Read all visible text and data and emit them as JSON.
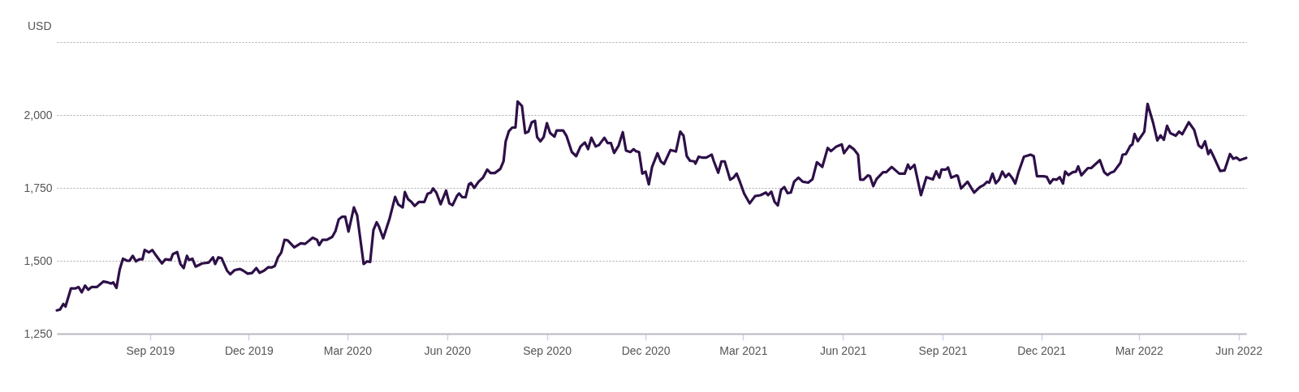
{
  "chart_data": {
    "type": "line",
    "ylabel": "USD",
    "grid": "y",
    "xlim": [
      "2019-06-07",
      "2022-06-08"
    ],
    "xticks": [
      {
        "value": "2019-09-01",
        "label": "Sep 2019"
      },
      {
        "value": "2019-12-01",
        "label": "Dec 2019"
      },
      {
        "value": "2020-03-01",
        "label": "Mar 2020"
      },
      {
        "value": "2020-06-01",
        "label": "Jun 2020"
      },
      {
        "value": "2020-09-01",
        "label": "Sep 2020"
      },
      {
        "value": "2020-12-01",
        "label": "Dec 2020"
      },
      {
        "value": "2021-03-01",
        "label": "Mar 2021"
      },
      {
        "value": "2021-06-01",
        "label": "Jun 2021"
      },
      {
        "value": "2021-09-01",
        "label": "Sep 2021"
      },
      {
        "value": "2021-12-01",
        "label": "Dec 2021"
      },
      {
        "value": "2022-03-01",
        "label": "Mar 2022"
      },
      {
        "value": "2022-06-01",
        "label": "Jun 2022"
      }
    ],
    "ylim": [
      1250,
      2250
    ],
    "yticks": [
      {
        "value": 1250,
        "label": "1,250"
      },
      {
        "value": 1500,
        "label": "1,500"
      },
      {
        "value": 1750,
        "label": "1,750"
      },
      {
        "value": 2000,
        "label": "2,000"
      },
      {
        "value": 2250,
        "label": null
      }
    ],
    "series": [
      {
        "color": "#2e1048",
        "x": [
          "2019-06-07",
          "2019-06-10",
          "2019-06-13",
          "2019-06-15",
          "2019-06-20",
          "2019-06-24",
          "2019-06-27",
          "2019-06-30",
          "2019-07-03",
          "2019-07-06",
          "2019-07-09",
          "2019-07-14",
          "2019-07-20",
          "2019-07-24",
          "2019-07-27",
          "2019-07-29",
          "2019-08-01",
          "2019-08-04",
          "2019-08-07",
          "2019-08-11",
          "2019-08-13",
          "2019-08-16",
          "2019-08-19",
          "2019-08-22",
          "2019-08-25",
          "2019-08-27",
          "2019-08-31",
          "2019-09-03",
          "2019-09-06",
          "2019-09-12",
          "2019-09-15",
          "2019-09-20",
          "2019-09-22",
          "2019-09-26",
          "2019-09-29",
          "2019-10-02",
          "2019-10-05",
          "2019-10-07",
          "2019-10-10",
          "2019-10-13",
          "2019-10-19",
          "2019-10-25",
          "2019-10-29",
          "2019-10-31",
          "2019-11-03",
          "2019-11-06",
          "2019-11-11",
          "2019-11-14",
          "2019-11-18",
          "2019-11-23",
          "2019-11-26",
          "2019-11-30",
          "2019-12-04",
          "2019-12-08",
          "2019-12-11",
          "2019-12-15",
          "2019-12-19",
          "2019-12-22",
          "2019-12-25",
          "2019-12-28",
          "2019-12-31",
          "2020-01-03",
          "2020-01-06",
          "2020-01-12",
          "2020-01-18",
          "2020-01-22",
          "2020-01-29",
          "2020-02-02",
          "2020-02-04",
          "2020-02-07",
          "2020-02-11",
          "2020-02-16",
          "2020-02-19",
          "2020-02-22",
          "2020-02-25",
          "2020-02-28",
          "2020-03-02",
          "2020-03-07",
          "2020-03-10",
          "2020-03-16",
          "2020-03-19",
          "2020-03-22",
          "2020-03-25",
          "2020-03-28",
          "2020-03-30",
          "2020-04-03",
          "2020-04-09",
          "2020-04-14",
          "2020-04-17",
          "2020-04-21",
          "2020-04-23",
          "2020-04-26",
          "2020-04-29",
          "2020-05-02",
          "2020-05-06",
          "2020-05-11",
          "2020-05-14",
          "2020-05-17",
          "2020-05-19",
          "2020-05-22",
          "2020-05-26",
          "2020-05-31",
          "2020-06-03",
          "2020-06-06",
          "2020-06-10",
          "2020-06-12",
          "2020-06-15",
          "2020-06-18",
          "2020-06-21",
          "2020-06-23",
          "2020-06-26",
          "2020-06-30",
          "2020-07-04",
          "2020-07-08",
          "2020-07-11",
          "2020-07-15",
          "2020-07-20",
          "2020-07-23",
          "2020-07-25",
          "2020-07-28",
          "2020-07-31",
          "2020-08-03",
          "2020-08-05",
          "2020-08-09",
          "2020-08-12",
          "2020-08-15",
          "2020-08-18",
          "2020-08-21",
          "2020-08-23",
          "2020-08-26",
          "2020-08-29",
          "2020-09-01",
          "2020-09-04",
          "2020-09-08",
          "2020-09-10",
          "2020-09-16",
          "2020-09-19",
          "2020-09-24",
          "2020-09-28",
          "2020-10-02",
          "2020-10-06",
          "2020-10-09",
          "2020-10-12",
          "2020-10-16",
          "2020-10-19",
          "2020-10-24",
          "2020-10-27",
          "2020-10-30",
          "2020-11-02",
          "2020-11-06",
          "2020-11-10",
          "2020-11-13",
          "2020-11-17",
          "2020-11-20",
          "2020-11-22",
          "2020-11-25",
          "2020-11-28",
          "2020-12-01",
          "2020-12-04",
          "2020-12-07",
          "2020-12-12",
          "2020-12-15",
          "2020-12-18",
          "2020-12-24",
          "2020-12-29",
          "2021-01-02",
          "2021-01-05",
          "2021-01-08",
          "2021-01-11",
          "2021-01-15",
          "2021-01-16",
          "2021-01-19",
          "2021-01-22",
          "2021-01-26",
          "2021-01-31",
          "2021-02-02",
          "2021-02-06",
          "2021-02-09",
          "2021-02-12",
          "2021-02-17",
          "2021-02-20",
          "2021-02-23",
          "2021-02-26",
          "2021-03-02",
          "2021-03-07",
          "2021-03-12",
          "2021-03-17",
          "2021-03-22",
          "2021-03-24",
          "2021-03-27",
          "2021-03-30",
          "2021-04-02",
          "2021-04-05",
          "2021-04-08",
          "2021-04-11",
          "2021-04-14",
          "2021-04-17",
          "2021-04-21",
          "2021-04-25",
          "2021-04-30",
          "2021-05-04",
          "2021-05-08",
          "2021-05-13",
          "2021-05-18",
          "2021-05-21",
          "2021-05-26",
          "2021-05-31",
          "2021-06-02",
          "2021-06-07",
          "2021-06-11",
          "2021-06-14",
          "2021-06-15",
          "2021-06-17",
          "2021-06-20",
          "2021-06-24",
          "2021-06-26",
          "2021-06-29",
          "2021-07-02",
          "2021-07-08",
          "2021-07-11",
          "2021-07-16",
          "2021-07-23",
          "2021-07-28",
          "2021-07-31",
          "2021-08-02",
          "2021-08-06",
          "2021-08-12",
          "2021-08-17",
          "2021-08-23",
          "2021-08-26",
          "2021-08-29",
          "2021-08-31",
          "2021-09-04",
          "2021-09-06",
          "2021-09-09",
          "2021-09-14",
          "2021-09-15",
          "2021-09-18",
          "2021-09-24",
          "2021-09-30",
          "2021-10-05",
          "2021-10-09",
          "2021-10-12",
          "2021-10-14",
          "2021-10-17",
          "2021-10-20",
          "2021-10-23",
          "2021-10-26",
          "2021-10-29",
          "2021-11-01",
          "2021-11-04",
          "2021-11-07",
          "2021-11-10",
          "2021-11-15",
          "2021-11-21",
          "2021-11-24",
          "2021-11-27",
          "2021-12-03",
          "2021-12-06",
          "2021-12-09",
          "2021-12-12",
          "2021-12-15",
          "2021-12-18",
          "2021-12-21",
          "2021-12-23",
          "2021-12-26",
          "2021-12-30",
          "2022-01-02",
          "2022-01-04",
          "2022-01-07",
          "2022-01-10",
          "2022-01-13",
          "2022-01-16",
          "2022-01-24",
          "2022-01-28",
          "2022-01-31",
          "2022-02-03",
          "2022-02-06",
          "2022-02-12",
          "2022-02-14",
          "2022-02-17",
          "2022-02-21",
          "2022-02-23",
          "2022-02-25",
          "2022-02-28",
          "2022-03-06",
          "2022-03-09",
          "2022-03-14",
          "2022-03-18",
          "2022-03-21",
          "2022-03-24",
          "2022-03-27",
          "2022-03-30",
          "2022-04-04",
          "2022-04-07",
          "2022-04-10",
          "2022-04-16",
          "2022-04-21",
          "2022-04-25",
          "2022-04-28",
          "2022-05-01",
          "2022-05-04",
          "2022-05-06",
          "2022-05-09",
          "2022-05-15",
          "2022-05-19",
          "2022-05-24",
          "2022-05-27",
          "2022-05-30",
          "2022-06-02",
          "2022-06-08"
        ],
        "values": [
          1330,
          1333,
          1352,
          1343,
          1405,
          1405,
          1410,
          1392,
          1415,
          1401,
          1410,
          1410,
          1429,
          1426,
          1422,
          1426,
          1407,
          1470,
          1507,
          1500,
          1500,
          1517,
          1498,
          1505,
          1505,
          1537,
          1529,
          1537,
          1521,
          1491,
          1505,
          1503,
          1523,
          1530,
          1489,
          1475,
          1517,
          1503,
          1507,
          1480,
          1491,
          1494,
          1512,
          1489,
          1512,
          1509,
          1466,
          1454,
          1468,
          1472,
          1466,
          1456,
          1458,
          1475,
          1459,
          1466,
          1478,
          1477,
          1482,
          1512,
          1528,
          1572,
          1570,
          1546,
          1560,
          1558,
          1579,
          1572,
          1554,
          1572,
          1572,
          1582,
          1602,
          1642,
          1651,
          1651,
          1600,
          1683,
          1656,
          1489,
          1498,
          1496,
          1605,
          1632,
          1618,
          1577,
          1646,
          1719,
          1693,
          1683,
          1736,
          1711,
          1702,
          1688,
          1702,
          1702,
          1730,
          1734,
          1748,
          1734,
          1694,
          1741,
          1697,
          1691,
          1722,
          1731,
          1718,
          1718,
          1762,
          1767,
          1750,
          1771,
          1785,
          1813,
          1801,
          1801,
          1815,
          1841,
          1910,
          1945,
          1957,
          1957,
          2046,
          2031,
          1938,
          1943,
          1975,
          1980,
          1924,
          1910,
          1924,
          1972,
          1938,
          1926,
          1947,
          1947,
          1929,
          1873,
          1859,
          1892,
          1906,
          1883,
          1922,
          1892,
          1897,
          1922,
          1904,
          1904,
          1870,
          1894,
          1941,
          1878,
          1873,
          1883,
          1876,
          1873,
          1799,
          1806,
          1762,
          1822,
          1869,
          1841,
          1832,
          1880,
          1875,
          1943,
          1929,
          1859,
          1843,
          1841,
          1833,
          1857,
          1854,
          1854,
          1864,
          1841,
          1802,
          1841,
          1841,
          1778,
          1785,
          1799,
          1771,
          1730,
          1697,
          1722,
          1725,
          1734,
          1725,
          1737,
          1702,
          1690,
          1744,
          1753,
          1732,
          1734,
          1771,
          1785,
          1771,
          1768,
          1780,
          1838,
          1822,
          1887,
          1876,
          1892,
          1899,
          1869,
          1894,
          1883,
          1869,
          1864,
          1778,
          1778,
          1793,
          1790,
          1756,
          1780,
          1804,
          1804,
          1822,
          1799,
          1799,
          1830,
          1815,
          1829,
          1725,
          1787,
          1779,
          1807,
          1785,
          1813,
          1813,
          1820,
          1785,
          1793,
          1790,
          1748,
          1771,
          1734,
          1752,
          1760,
          1771,
          1768,
          1799,
          1766,
          1778,
          1806,
          1787,
          1799,
          1785,
          1765,
          1804,
          1857,
          1864,
          1859,
          1790,
          1790,
          1788,
          1766,
          1780,
          1778,
          1787,
          1765,
          1806,
          1794,
          1804,
          1806,
          1824,
          1793,
          1806,
          1818,
          1818,
          1845,
          1804,
          1794,
          1802,
          1806,
          1836,
          1864,
          1866,
          1894,
          1899,
          1935,
          1910,
          1943,
          2038,
          1975,
          1913,
          1930,
          1915,
          1963,
          1938,
          1929,
          1943,
          1934,
          1975,
          1949,
          1896,
          1887,
          1910,
          1866,
          1880,
          1857,
          1808,
          1810,
          1866,
          1850,
          1854,
          1845,
          1853
        ]
      }
    ]
  }
}
